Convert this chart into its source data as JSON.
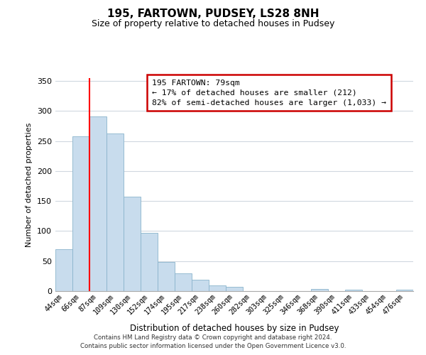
{
  "title": "195, FARTOWN, PUDSEY, LS28 8NH",
  "subtitle": "Size of property relative to detached houses in Pudsey",
  "xlabel": "Distribution of detached houses by size in Pudsey",
  "ylabel": "Number of detached properties",
  "bar_color": "#c8dced",
  "bar_edge_color": "#8ab4cc",
  "categories": [
    "44sqm",
    "66sqm",
    "87sqm",
    "109sqm",
    "130sqm",
    "152sqm",
    "174sqm",
    "195sqm",
    "217sqm",
    "238sqm",
    "260sqm",
    "282sqm",
    "303sqm",
    "325sqm",
    "346sqm",
    "368sqm",
    "390sqm",
    "411sqm",
    "433sqm",
    "454sqm",
    "476sqm"
  ],
  "values": [
    70,
    258,
    291,
    263,
    157,
    97,
    48,
    29,
    19,
    10,
    7,
    0,
    0,
    0,
    0,
    4,
    0,
    2,
    0,
    0,
    2
  ],
  "ylim": [
    0,
    355
  ],
  "yticks": [
    0,
    50,
    100,
    150,
    200,
    250,
    300,
    350
  ],
  "red_line_x": 1.5,
  "annotation_text": "195 FARTOWN: 79sqm\n← 17% of detached houses are smaller (212)\n82% of semi-detached houses are larger (1,033) →",
  "annotation_box_color": "#ffffff",
  "annotation_box_edge_color": "#cc0000",
  "footer_line1": "Contains HM Land Registry data © Crown copyright and database right 2024.",
  "footer_line2": "Contains public sector information licensed under the Open Government Licence v3.0.",
  "background_color": "#ffffff",
  "grid_color": "#d0d8e0"
}
